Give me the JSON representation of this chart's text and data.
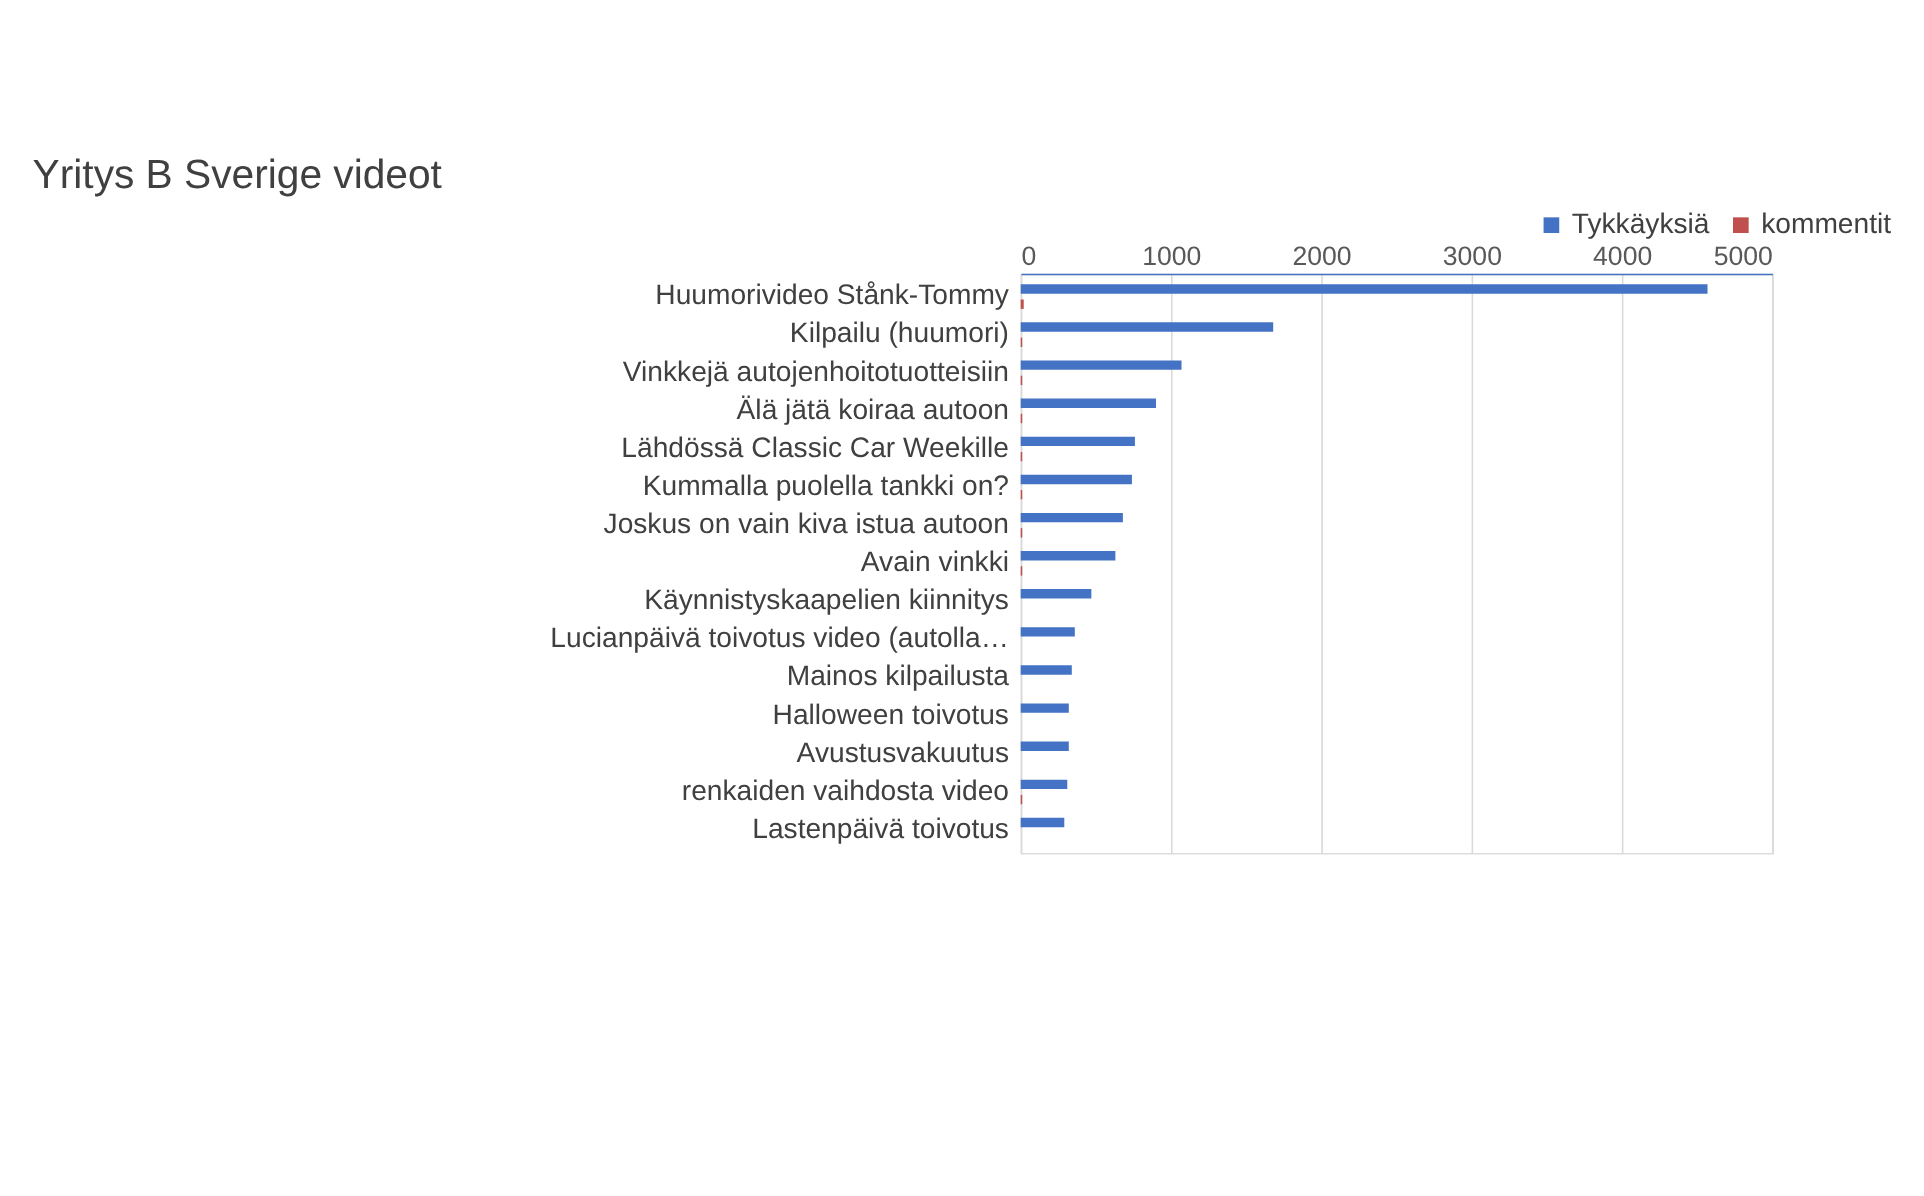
{
  "chart_data": {
    "type": "bar",
    "orientation": "horizontal",
    "title": "Yritys B Sverige videot",
    "categories": [
      "Huumorivideo Stånk-Tommy",
      "Kilpailu (huumori)",
      "Vinkkejä autojenhoitotuotteisiin",
      "Älä jätä koiraa autoon",
      "Lähdössä Classic Car Weekille",
      "Kummalla puolella tankki on?",
      "Joskus on vain kiva istua autoon",
      "Avain vinkki",
      "Käynnistyskaapelien kiinnitys",
      "Lucianpäivä toivotus video (autolla…",
      "Mainos kilpailusta",
      "Halloween toivotus",
      "Avustusvakuutus",
      "renkaiden vaihdosta video",
      "Lastenpäivä toivotus"
    ],
    "series": [
      {
        "name": "Tykkäyksiä",
        "color": "#4472c4",
        "values": [
          4570,
          1680,
          1070,
          900,
          760,
          740,
          680,
          630,
          470,
          360,
          340,
          320,
          320,
          310,
          290
        ]
      },
      {
        "name": "kommentit",
        "color": "#c0504d",
        "values": [
          20,
          10,
          10,
          10,
          10,
          10,
          10,
          10,
          0,
          0,
          0,
          0,
          0,
          10,
          0
        ]
      }
    ],
    "xlim": [
      0,
      5000
    ],
    "xticks": [
      0,
      1000,
      2000,
      3000,
      4000,
      5000
    ],
    "grid": "x",
    "legend": "top right"
  }
}
